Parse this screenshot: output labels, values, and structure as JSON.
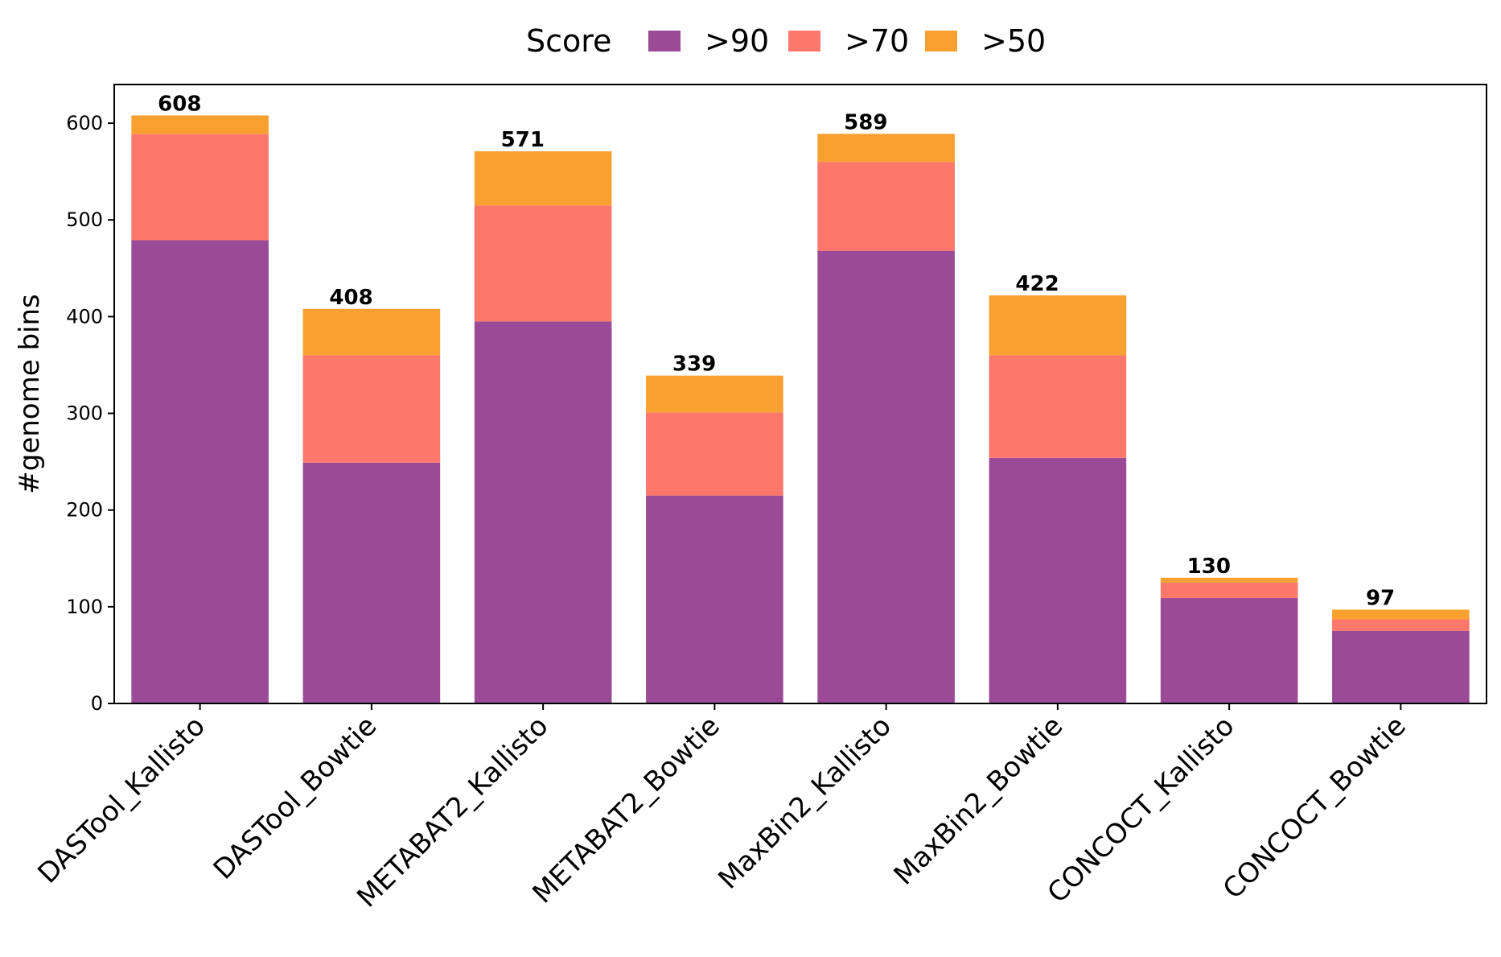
{
  "chart_data": {
    "type": "bar",
    "stacked": true,
    "title": "",
    "xlabel": "",
    "ylabel": "#genome bins",
    "ylim": [
      0,
      640
    ],
    "yticks": [
      0,
      100,
      200,
      300,
      400,
      500,
      600
    ],
    "grid": false,
    "categories": [
      "DASTool_Kallisto",
      "DASTool_Bowtie",
      "METABAT2_Kallisto",
      "METABAT2_Bowtie",
      "MaxBin2_Kallisto",
      "MaxBin2_Bowtie",
      "CONCOCT_Kallisto",
      "CONCOCT_Bowtie"
    ],
    "series": [
      {
        "name": ">90",
        "color": "#9a4a96",
        "values": [
          479,
          249,
          395,
          215,
          468,
          254,
          109,
          75
        ]
      },
      {
        "name": ">70",
        "color": "#fd786b",
        "values": [
          110,
          111,
          120,
          86,
          92,
          106,
          16,
          12
        ]
      },
      {
        "name": ">50",
        "color": "#f8a131",
        "values": [
          19,
          48,
          56,
          38,
          29,
          62,
          5,
          10
        ]
      }
    ],
    "totals": [
      608,
      408,
      571,
      339,
      589,
      422,
      130,
      97
    ],
    "legend": {
      "title": "Score",
      "placement": "top-center"
    }
  }
}
